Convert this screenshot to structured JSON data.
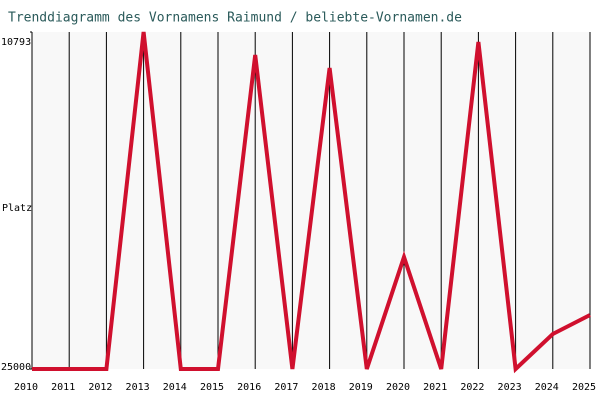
{
  "chart_data": {
    "type": "line",
    "title": "Trenddiagramm des Vornamens Raimund / beliebte-Vornamen.de",
    "y_label": "Platz",
    "x": [
      2010,
      2011,
      2012,
      2013,
      2014,
      2015,
      2016,
      2017,
      2018,
      2019,
      2020,
      2021,
      2022,
      2023,
      2024,
      2025
    ],
    "xlim": [
      2010,
      2025
    ],
    "series": [
      {
        "name": "Raimund",
        "color": "#d0102e",
        "values": [
          25000,
          25000,
          25000,
          10793,
          25000,
          25000,
          11763,
          25000,
          12311,
          25000,
          20279,
          25000,
          11215,
          25000,
          23525,
          22724
        ]
      }
    ],
    "ylim": [
      25000,
      10793
    ],
    "yticks": [
      10793,
      25000
    ],
    "grid": true
  }
}
